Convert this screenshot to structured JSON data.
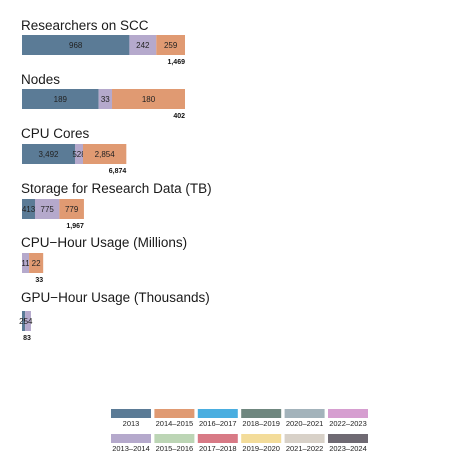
{
  "chart_data": {
    "type": "bar",
    "orientation": "horizontal",
    "stacked": true,
    "panels": [
      {
        "title": "Researchers on SCC",
        "total": "1,469",
        "segments": [
          {
            "series": "2013",
            "value": 968,
            "label": "968"
          },
          {
            "series": "2013–2014",
            "value": 242,
            "label": "242"
          },
          {
            "series": "2014–2015",
            "value": 259,
            "label": "259"
          }
        ]
      },
      {
        "title": "Nodes",
        "total": "402",
        "segments": [
          {
            "series": "2013",
            "value": 189,
            "label": "189"
          },
          {
            "series": "2013–2014",
            "value": 33,
            "label": "33"
          },
          {
            "series": "2014–2015",
            "value": 180,
            "label": "180"
          }
        ]
      },
      {
        "title": "CPU Cores",
        "total": "6,874",
        "segments": [
          {
            "series": "2013",
            "value": 3492,
            "label": "3,492"
          },
          {
            "series": "2013–2014",
            "value": 528,
            "label": "528"
          },
          {
            "series": "2014–2015",
            "value": 2854,
            "label": "2,854"
          }
        ]
      },
      {
        "title": "Storage for Research Data (TB)",
        "total": "1,967",
        "segments": [
          {
            "series": "2013",
            "value": 413,
            "label": "413"
          },
          {
            "series": "2013–2014",
            "value": 775,
            "label": "775"
          },
          {
            "series": "2014–2015",
            "value": 779,
            "label": "779"
          }
        ]
      },
      {
        "title": "CPU−Hour Usage (Millions)",
        "total": "33",
        "segments": [
          {
            "series": "2013",
            "value": 0,
            "label": ""
          },
          {
            "series": "2013–2014",
            "value": 11,
            "label": "11"
          },
          {
            "series": "2014–2015",
            "value": 22,
            "label": "22"
          }
        ]
      },
      {
        "title": "GPU−Hour Usage (Thousands)",
        "total": "83",
        "segments": [
          {
            "series": "2013",
            "value": 29,
            "label": "29"
          },
          {
            "series": "2013–2014",
            "value": 54,
            "label": "54"
          },
          {
            "series": "2014–2015",
            "value": 0,
            "label": ""
          }
        ]
      }
    ],
    "legend": {
      "placement": "bottom-right",
      "items": [
        {
          "name": "2013",
          "color": "#5b7b96"
        },
        {
          "name": "2014–2015",
          "color": "#e09a72"
        },
        {
          "name": "2016–2017",
          "color": "#4aaee0"
        },
        {
          "name": "2018–2019",
          "color": "#6f877f"
        },
        {
          "name": "2020–2021",
          "color": "#a3b3bb"
        },
        {
          "name": "2022–2023",
          "color": "#d69ed0"
        },
        {
          "name": "2013–2014",
          "color": "#b5a9cc"
        },
        {
          "name": "2015–2016",
          "color": "#bcd5b5"
        },
        {
          "name": "2017–2018",
          "color": "#d87a86"
        },
        {
          "name": "2019–2020",
          "color": "#f3dc9a"
        },
        {
          "name": "2021–2022",
          "color": "#d8d1c8"
        },
        {
          "name": "2023–2024",
          "color": "#6f6a73"
        }
      ]
    },
    "grid": false
  }
}
